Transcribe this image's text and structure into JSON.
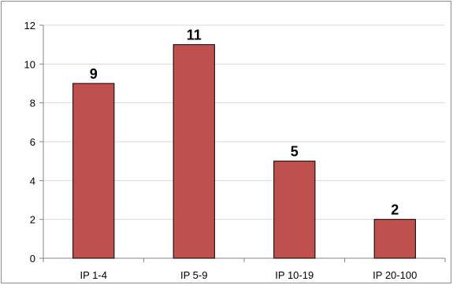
{
  "chart_data": {
    "type": "bar",
    "categories": [
      "IP 1-4",
      "IP 5-9",
      "IP 10-19",
      "IP 20-100"
    ],
    "values": [
      9,
      11,
      5,
      2
    ],
    "data_labels": [
      "9",
      "11",
      "5",
      "2"
    ],
    "title": "",
    "xlabel": "",
    "ylabel": "",
    "ylim": [
      0,
      12
    ],
    "yticks": [
      0,
      2,
      4,
      6,
      8,
      10,
      12
    ],
    "grid": true,
    "legend": "none",
    "bar_color": "#c0504d",
    "bar_edge_color": "#000000",
    "grid_color": "#d9d9d9"
  }
}
